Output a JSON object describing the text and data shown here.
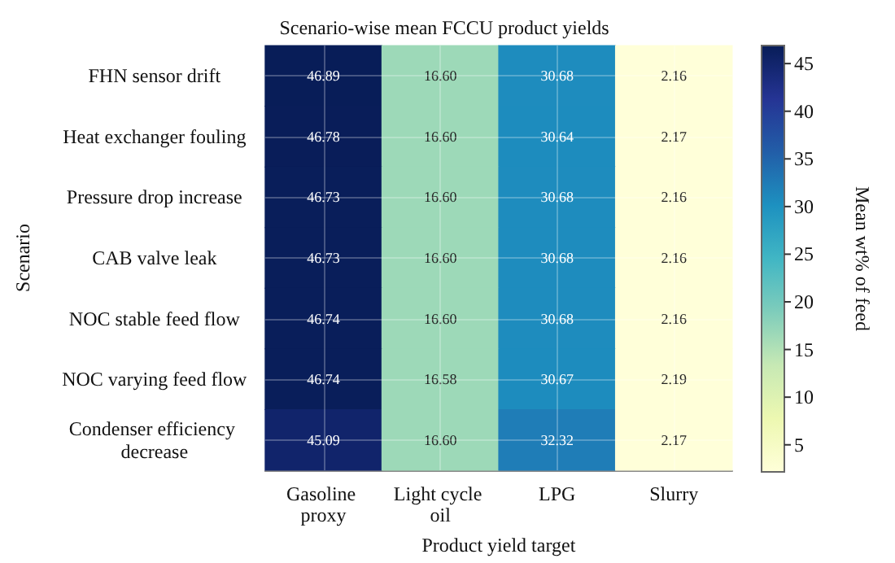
{
  "chart_data": {
    "type": "heatmap",
    "title": "Scenario-wise mean FCCU product yields",
    "xlabel": "Product yield target",
    "ylabel": "Scenario",
    "clabel": "Mean wt% of feed",
    "categories": [
      "Gasoline proxy",
      "Light cycle oil",
      "LPG",
      "Slurry"
    ],
    "y_categories": [
      "FHN sensor drift",
      "Heat exchanger fouling",
      "Pressure drop increase",
      "CAB valve leak",
      "NOC stable feed flow",
      "NOC varying feed flow",
      "Condenser efficiency decrease"
    ],
    "cells": [
      [
        46.89,
        16.6,
        30.68,
        2.16
      ],
      [
        46.78,
        16.6,
        30.64,
        2.17
      ],
      [
        46.73,
        16.6,
        30.68,
        2.16
      ],
      [
        46.73,
        16.6,
        30.68,
        2.16
      ],
      [
        46.74,
        16.6,
        30.68,
        2.16
      ],
      [
        46.74,
        16.58,
        30.67,
        2.19
      ],
      [
        45.09,
        16.6,
        32.32,
        2.17
      ]
    ],
    "cell_labels": [
      [
        "46.89",
        "16.60",
        "30.68",
        "2.16"
      ],
      [
        "46.78",
        "16.60",
        "30.64",
        "2.17"
      ],
      [
        "46.73",
        "16.60",
        "30.68",
        "2.16"
      ],
      [
        "46.73",
        "16.60",
        "30.68",
        "2.16"
      ],
      [
        "46.74",
        "16.60",
        "30.68",
        "2.16"
      ],
      [
        "46.74",
        "16.58",
        "30.67",
        "2.19"
      ],
      [
        "45.09",
        "16.60",
        "32.32",
        "2.17"
      ]
    ],
    "clim": [
      2.16,
      46.89
    ],
    "cticks": [
      5,
      10,
      15,
      20,
      25,
      30,
      35,
      40,
      45
    ],
    "grid": true
  }
}
